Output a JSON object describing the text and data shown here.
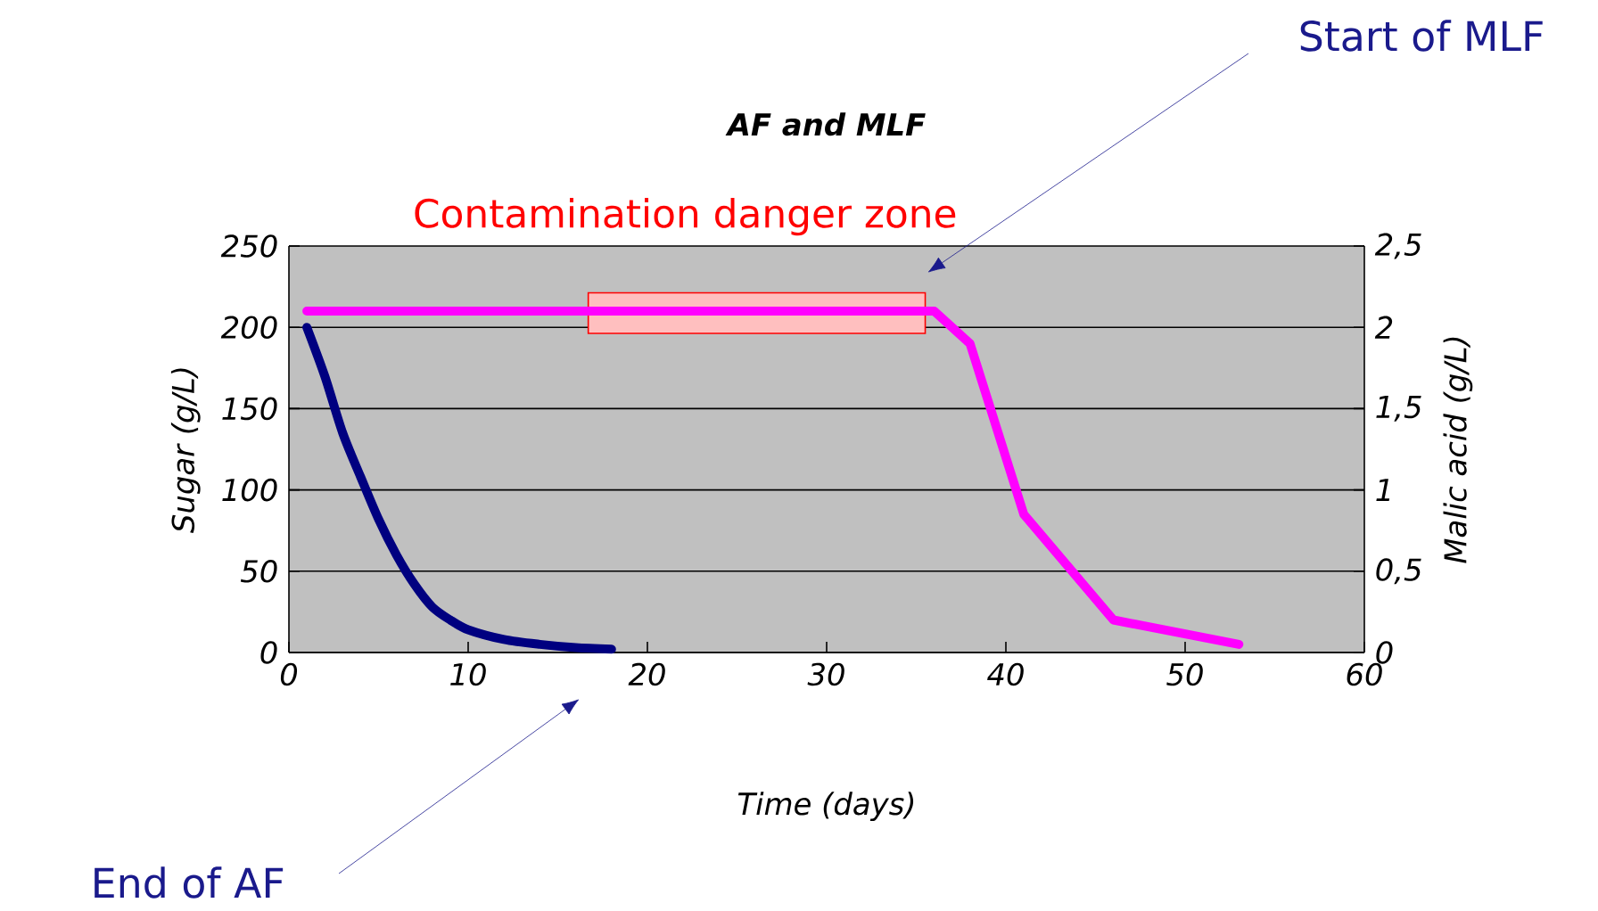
{
  "chart_data": {
    "type": "line",
    "title": "AF and MLF",
    "xlabel": "Time (days)",
    "ylabel": "Sugar (g/L)",
    "y2label": "Malic acid (g/L)",
    "xlim": [
      0,
      60
    ],
    "xticks": [
      0,
      10,
      20,
      30,
      40,
      50,
      60
    ],
    "ylim": [
      0,
      250
    ],
    "yticks": [
      0,
      50,
      100,
      150,
      200,
      250
    ],
    "y2lim": [
      0,
      2.5
    ],
    "y2ticks": [
      0,
      {
        "value": 0.5,
        "label": "0,5"
      },
      1,
      {
        "value": 1.5,
        "label": "1,5"
      },
      2,
      {
        "value": 2.5,
        "label": "2,5"
      }
    ],
    "grid": "y",
    "marker": "none",
    "line_style": "solid",
    "series": [
      {
        "color": "#000080",
        "x": [
          1,
          2,
          3,
          4,
          5,
          6,
          7,
          8,
          9,
          10,
          12,
          14,
          16,
          18
        ],
        "values": [
          200,
          170,
          135,
          108,
          82,
          60,
          42,
          28,
          20,
          14,
          8,
          5,
          3,
          2
        ]
      },
      {
        "color": "#ff00ff",
        "axis": "y2",
        "x": [
          1,
          36,
          38,
          41,
          46,
          53
        ],
        "values": [
          2.1,
          2.1,
          1.9,
          0.85,
          0.2,
          0.05
        ]
      }
    ],
    "bands": [
      {
        "axis": "x",
        "from": 16.7,
        "to": 35.5,
        "label": "Contamination danger zone",
        "color": "#ff0000"
      }
    ],
    "annotations": [
      "Start of MLF",
      "End of AF"
    ]
  }
}
